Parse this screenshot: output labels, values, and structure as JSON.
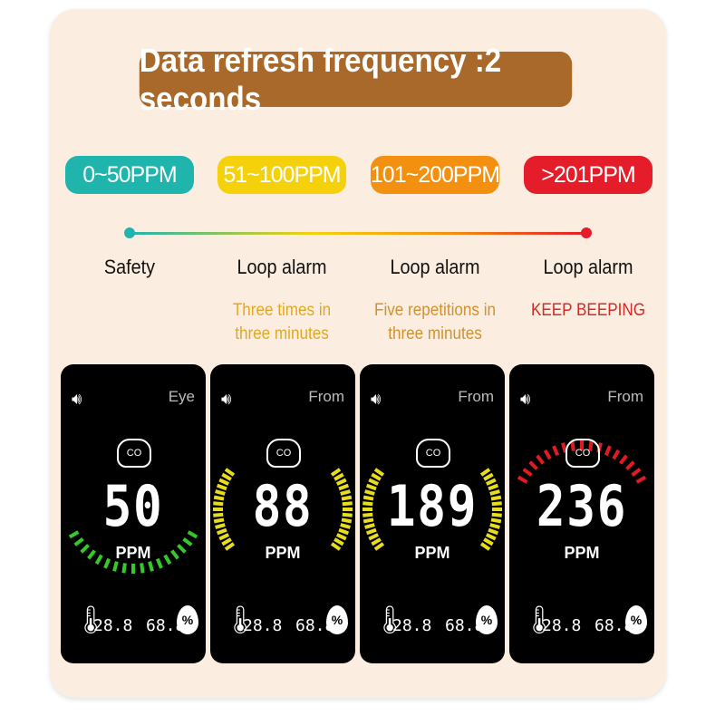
{
  "title": "Data refresh frequency :2 seconds",
  "levels": [
    {
      "range": "0~50PPM",
      "color": "#1fb5ad",
      "label": "Safety",
      "note1": "",
      "note2": "",
      "note_color": "#c98a2a"
    },
    {
      "range": "51~100PPM",
      "color": "#f5d10c",
      "label": "Loop alarm",
      "note1": "Three times in",
      "note2": "three minutes",
      "note_color": "#e0a822"
    },
    {
      "range": "101~200PPM",
      "color": "#f3900f",
      "label": "Loop alarm",
      "note1": "Five repetitions in",
      "note2": "three minutes",
      "note_color": "#d0922e"
    },
    {
      "range": ">201PPM",
      "color": "#e51c2a",
      "label": "Loop alarm",
      "note1": "KEEP BEEPING",
      "note2": "",
      "note_color": "#d42a2a"
    }
  ],
  "cards": [
    {
      "corner": "Eye",
      "gas": "CO",
      "value": "50",
      "unit": "PPM",
      "temp": "28.8",
      "humidity": "68.8",
      "humidity_unit": "%",
      "arc": "bottom",
      "arc_color": "#35c82a"
    },
    {
      "corner": "From",
      "gas": "CO",
      "value": "88",
      "unit": "PPM",
      "temp": "28.8",
      "humidity": "68.8",
      "humidity_unit": "%",
      "arc": "sides",
      "arc_color": "#e8dc1e"
    },
    {
      "corner": "From",
      "gas": "CO",
      "value": "189",
      "unit": "PPM",
      "temp": "28.8",
      "humidity": "68.8",
      "humidity_unit": "%",
      "arc": "sides",
      "arc_color": "#e8dc1e"
    },
    {
      "corner": "From",
      "gas": "CO",
      "value": "236",
      "unit": "PPM",
      "temp": "28.8",
      "humidity": "68.8",
      "humidity_unit": "%",
      "arc": "top",
      "arc_color": "#e01c22"
    }
  ]
}
